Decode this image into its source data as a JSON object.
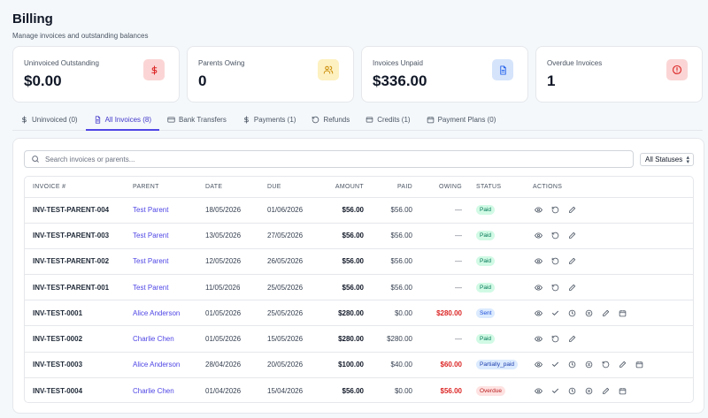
{
  "header": {
    "title": "Billing",
    "subtitle": "Manage invoices and outstanding balances"
  },
  "cards": [
    {
      "label": "Uninvoiced Outstanding",
      "value": "$0.00",
      "icon": "dollar-icon",
      "color": "#dc2626"
    },
    {
      "label": "Parents Owing",
      "value": "0",
      "icon": "users-icon",
      "color": "#ca8a04"
    },
    {
      "label": "Invoices Unpaid",
      "value": "$336.00",
      "icon": "document-icon",
      "color": "#2563eb"
    },
    {
      "label": "Overdue Invoices",
      "value": "1",
      "icon": "alert-circle-icon",
      "color": "#dc2626"
    }
  ],
  "tabs": [
    {
      "label": "Uninvoiced (0)",
      "icon": "dollar-icon"
    },
    {
      "label": "All Invoices (8)",
      "icon": "document-icon",
      "active": true
    },
    {
      "label": "Bank Transfers",
      "icon": "card-icon"
    },
    {
      "label": "Payments (1)",
      "icon": "dollar-icon"
    },
    {
      "label": "Refunds",
      "icon": "undo-icon"
    },
    {
      "label": "Credits (1)",
      "icon": "wallet-icon"
    },
    {
      "label": "Payment Plans (0)",
      "icon": "calendar-icon"
    }
  ],
  "search": {
    "placeholder": "Search invoices or parents..."
  },
  "filter": {
    "selected": "All Statuses"
  },
  "table": {
    "headers": {
      "invoice": "INVOICE #",
      "parent": "PARENT",
      "date": "DATE",
      "due": "DUE",
      "amount": "AMOUNT",
      "paid": "PAID",
      "owing": "OWING",
      "status": "STATUS",
      "actions": "ACTIONS"
    },
    "rows": [
      {
        "invoice": "INV-TEST-PARENT-004",
        "parent": "Test Parent",
        "date": "18/05/2026",
        "due": "01/06/2026",
        "amount": "$56.00",
        "paid": "$56.00",
        "owing": "—",
        "status": "Paid"
      },
      {
        "invoice": "INV-TEST-PARENT-003",
        "parent": "Test Parent",
        "date": "13/05/2026",
        "due": "27/05/2026",
        "amount": "$56.00",
        "paid": "$56.00",
        "owing": "—",
        "status": "Paid"
      },
      {
        "invoice": "INV-TEST-PARENT-002",
        "parent": "Test Parent",
        "date": "12/05/2026",
        "due": "26/05/2026",
        "amount": "$56.00",
        "paid": "$56.00",
        "owing": "—",
        "status": "Paid"
      },
      {
        "invoice": "INV-TEST-PARENT-001",
        "parent": "Test Parent",
        "date": "11/05/2026",
        "due": "25/05/2026",
        "amount": "$56.00",
        "paid": "$56.00",
        "owing": "—",
        "status": "Paid"
      },
      {
        "invoice": "INV-TEST-0001",
        "parent": "Alice Anderson",
        "date": "01/05/2026",
        "due": "25/05/2026",
        "amount": "$280.00",
        "paid": "$0.00",
        "owing": "$280.00",
        "status": "Sent"
      },
      {
        "invoice": "INV-TEST-0002",
        "parent": "Charlie Chen",
        "date": "01/05/2026",
        "due": "15/05/2026",
        "amount": "$280.00",
        "paid": "$280.00",
        "owing": "—",
        "status": "Paid"
      },
      {
        "invoice": "INV-TEST-0003",
        "parent": "Alice Anderson",
        "date": "28/04/2026",
        "due": "20/05/2026",
        "amount": "$100.00",
        "paid": "$40.00",
        "owing": "$60.00",
        "status": "Partially_paid"
      },
      {
        "invoice": "INV-TEST-0004",
        "parent": "Charlie Chen",
        "date": "01/04/2026",
        "due": "15/04/2026",
        "amount": "$56.00",
        "paid": "$0.00",
        "owing": "$56.00",
        "status": "Overdue"
      }
    ]
  }
}
